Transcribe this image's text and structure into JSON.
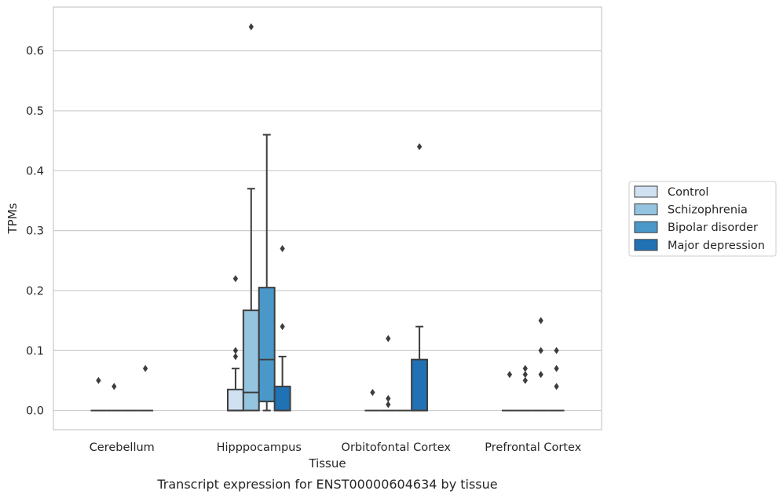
{
  "chart_data": {
    "type": "box",
    "title": "",
    "caption": "Transcript expression for ENST00000604634 by tissue",
    "xlabel": "Tissue",
    "ylabel": "TPMs",
    "ylim": [
      -0.032,
      0.673
    ],
    "yticks": [
      0.0,
      0.1,
      0.2,
      0.3,
      0.4,
      0.5,
      0.6
    ],
    "ytick_labels": [
      "0.0",
      "0.1",
      "0.2",
      "0.3",
      "0.4",
      "0.5",
      "0.6"
    ],
    "grid": "horizontal",
    "legend_placement": "right",
    "categories": [
      "Cerebellum",
      "Hipppocampus",
      "Orbitofontal Cortex",
      "Prefrontal Cortex"
    ],
    "series": [
      {
        "name": "Control",
        "color": "#d0e1f2",
        "boxes": [
          {
            "q1": 0.0,
            "median": 0.0,
            "q3": 0.0,
            "whislo": 0.0,
            "whishi": 0.0,
            "fliers": [
              0.05
            ]
          },
          {
            "q1": 0.0,
            "median": 0.0,
            "q3": 0.035,
            "whislo": 0.0,
            "whishi": 0.07,
            "fliers": [
              0.09,
              0.1,
              0.22
            ]
          },
          {
            "q1": 0.0,
            "median": 0.0,
            "q3": 0.0,
            "whislo": 0.0,
            "whishi": 0.0,
            "fliers": [
              0.03
            ]
          },
          {
            "q1": 0.0,
            "median": 0.0,
            "q3": 0.0,
            "whislo": 0.0,
            "whishi": 0.0,
            "fliers": [
              0.06
            ]
          }
        ]
      },
      {
        "name": "Schizophrenia",
        "color": "#94c4df",
        "boxes": [
          {
            "q1": 0.0,
            "median": 0.0,
            "q3": 0.0,
            "whislo": 0.0,
            "whishi": 0.0,
            "fliers": [
              0.04
            ]
          },
          {
            "q1": 0.0,
            "median": 0.03,
            "q3": 0.167,
            "whislo": 0.0,
            "whishi": 0.37,
            "fliers": [
              0.64
            ]
          },
          {
            "q1": 0.0,
            "median": 0.0,
            "q3": 0.0,
            "whislo": 0.0,
            "whishi": 0.0,
            "fliers": [
              0.01,
              0.02,
              0.12
            ]
          },
          {
            "q1": 0.0,
            "median": 0.0,
            "q3": 0.0,
            "whislo": 0.0,
            "whishi": 0.0,
            "fliers": [
              0.05,
              0.06,
              0.07
            ]
          }
        ]
      },
      {
        "name": "Bipolar disorder",
        "color": "#4a98c9",
        "boxes": [
          {
            "q1": 0.0,
            "median": 0.0,
            "q3": 0.0,
            "whislo": 0.0,
            "whishi": 0.0,
            "fliers": []
          },
          {
            "q1": 0.015,
            "median": 0.085,
            "q3": 0.205,
            "whislo": 0.0,
            "whishi": 0.46,
            "fliers": []
          },
          {
            "q1": 0.0,
            "median": 0.0,
            "q3": 0.0,
            "whislo": 0.0,
            "whishi": 0.0,
            "fliers": []
          },
          {
            "q1": 0.0,
            "median": 0.0,
            "q3": 0.0,
            "whislo": 0.0,
            "whishi": 0.0,
            "fliers": [
              0.06,
              0.1,
              0.15
            ]
          }
        ]
      },
      {
        "name": "Major depression",
        "color": "#2171b5",
        "boxes": [
          {
            "q1": 0.0,
            "median": 0.0,
            "q3": 0.0,
            "whislo": 0.0,
            "whishi": 0.0,
            "fliers": [
              0.07
            ]
          },
          {
            "q1": 0.0,
            "median": 0.0,
            "q3": 0.04,
            "whislo": 0.0,
            "whishi": 0.09,
            "fliers": [
              0.14,
              0.27
            ]
          },
          {
            "q1": 0.0,
            "median": 0.0,
            "q3": 0.085,
            "whislo": 0.0,
            "whishi": 0.14,
            "fliers": [
              0.44
            ]
          },
          {
            "q1": 0.0,
            "median": 0.0,
            "q3": 0.0,
            "whislo": 0.0,
            "whishi": 0.0,
            "fliers": [
              0.04,
              0.07,
              0.1
            ]
          }
        ]
      }
    ]
  },
  "colors": {
    "grid": "#cccccc",
    "frame": "#cccccc",
    "box_edge": "#3d3d3d",
    "text": "#262626"
  }
}
